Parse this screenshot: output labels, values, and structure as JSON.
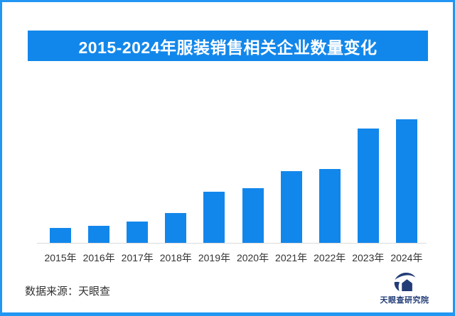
{
  "theme": {
    "accent": "#1287EB",
    "frame_border": "#2196F3",
    "background": "#ffffff",
    "axis_line": "#DBDBDB",
    "label_color": "#333333",
    "brand_color": "#223C77"
  },
  "header": {
    "title": "2015-2024年服装销售相关企业数量变化"
  },
  "chart_data": {
    "type": "bar",
    "title": "2015-2024年服装销售相关企业数量变化",
    "categories": [
      "2015年",
      "2016年",
      "2017年",
      "2018年",
      "2019年",
      "2020年",
      "2021年",
      "2022年",
      "2023年",
      "2024年"
    ],
    "values": [
      21,
      24,
      30,
      42,
      72,
      77,
      101,
      104,
      161,
      174
    ],
    "xlabel": "",
    "ylabel": "",
    "ylim": [
      0,
      185
    ],
    "grid": false,
    "legend": "none",
    "value_axis_shown": false,
    "note": "无数值轴标注，values为按条形相对高度估算的相对值",
    "bar_color": "#1287EB"
  },
  "footer": {
    "source_label": "数据来源：天眼查"
  },
  "brand": {
    "logo": "tianyancha-eye-logo",
    "text": "天眼查研究院"
  }
}
